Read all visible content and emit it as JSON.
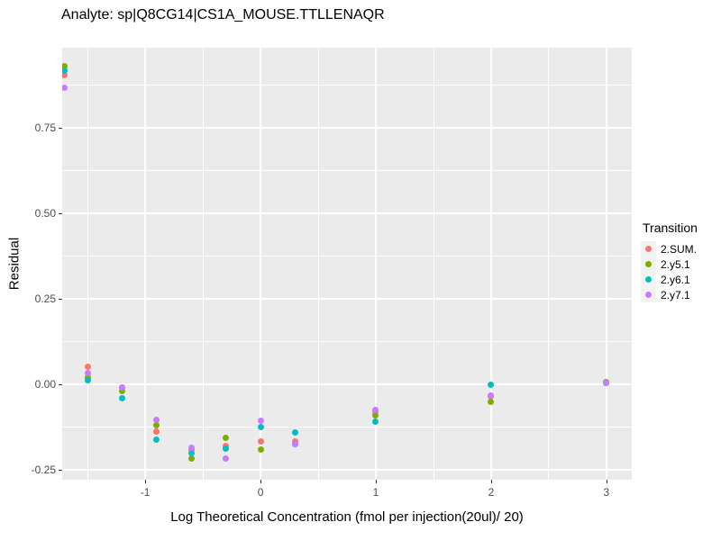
{
  "chart_data": {
    "type": "scatter",
    "title": "Analyte: sp|Q8CG14|CS1A_MOUSE.TTLLENAQR",
    "xlabel": "Log Theoretical Concentration (fmol per injection(20ul)/ 20)",
    "ylabel": "Residual",
    "xlim": [
      -1.72,
      3.22
    ],
    "ylim": [
      -0.279,
      0.984
    ],
    "x_ticks": {
      "values": [
        -1,
        0,
        1,
        2,
        3
      ],
      "labels": [
        "-1",
        "0",
        "1",
        "2",
        "3"
      ]
    },
    "y_ticks": {
      "values": [
        -0.25,
        0,
        0.25,
        0.5,
        0.75
      ],
      "labels": [
        "-0.25",
        "0.00",
        "0.25",
        "0.50",
        "0.75"
      ]
    },
    "x_minor": [
      -1.5,
      -0.5,
      0.5,
      1.5,
      2.5
    ],
    "y_minor": [
      -0.125,
      0.125,
      0.375,
      0.625,
      0.875
    ],
    "grid": true,
    "legend": {
      "title": "Transition",
      "position": "right"
    },
    "style": {
      "panel_bg": "#EBEBEB",
      "grid_color": "#FFFFFF",
      "tick_color": "#333333",
      "tick_label_color": "#4D4D4D",
      "legend_key_bg": "#F2F2F2"
    },
    "series": [
      {
        "name": "2.SUM.",
        "color": "#F8766D",
        "points": [
          [
            -1.7,
            0.905
          ],
          [
            -1.5,
            0.05
          ],
          [
            -1.2,
            -0.01
          ],
          [
            -0.9,
            -0.138
          ],
          [
            -0.6,
            -0.192
          ],
          [
            -0.3,
            -0.18
          ],
          [
            0,
            -0.166
          ],
          [
            0.3,
            -0.167
          ],
          [
            1,
            -0.08
          ],
          [
            2,
            -0.035
          ],
          [
            3,
            0.004
          ]
        ]
      },
      {
        "name": "2.y5.1",
        "color": "#7CAE00",
        "points": [
          [
            -1.7,
            0.93
          ],
          [
            -1.5,
            0.02
          ],
          [
            -1.2,
            -0.021
          ],
          [
            -0.9,
            -0.119
          ],
          [
            -0.6,
            -0.218
          ],
          [
            -0.3,
            -0.157
          ],
          [
            0,
            -0.19
          ],
          [
            0.3,
            -0.174
          ],
          [
            1,
            -0.091
          ],
          [
            2,
            -0.052
          ],
          [
            3,
            0.006
          ]
        ]
      },
      {
        "name": "2.y6.1",
        "color": "#00BFC4",
        "points": [
          [
            -1.7,
            0.918
          ],
          [
            -1.5,
            0.012
          ],
          [
            -1.2,
            -0.041
          ],
          [
            -0.9,
            -0.161
          ],
          [
            -0.6,
            -0.201
          ],
          [
            -0.3,
            -0.188
          ],
          [
            0,
            -0.124
          ],
          [
            0.3,
            -0.141
          ],
          [
            1,
            -0.109
          ],
          [
            2,
            -0.002
          ],
          [
            3,
            0.005
          ]
        ]
      },
      {
        "name": "2.y7.1",
        "color": "#C77CFF",
        "points": [
          [
            -1.7,
            0.868
          ],
          [
            -1.5,
            0.032
          ],
          [
            -1.2,
            -0.008
          ],
          [
            -0.9,
            -0.103
          ],
          [
            -0.6,
            -0.185
          ],
          [
            -0.3,
            -0.217
          ],
          [
            0,
            -0.106
          ],
          [
            0.3,
            -0.176
          ],
          [
            1,
            -0.076
          ],
          [
            2,
            -0.034
          ],
          [
            3,
            0.003
          ]
        ]
      }
    ]
  }
}
